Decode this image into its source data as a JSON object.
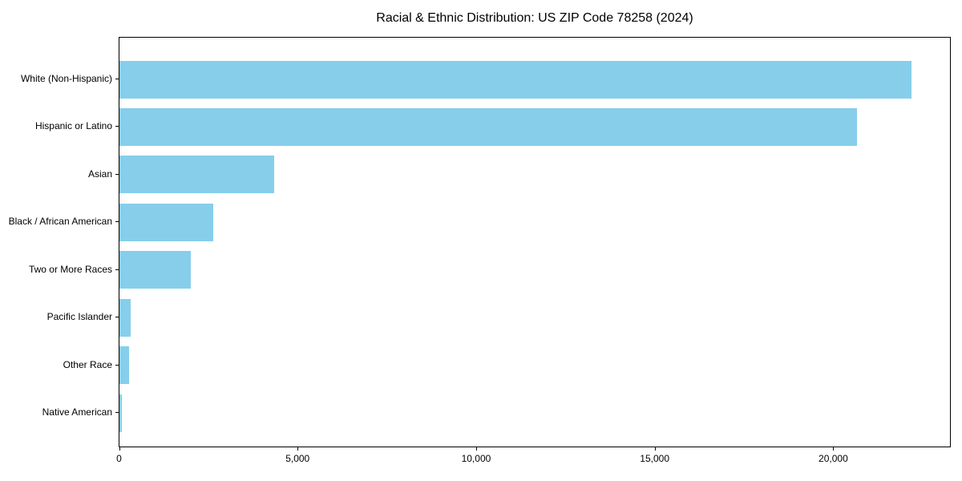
{
  "chart_data": {
    "type": "bar",
    "orientation": "horizontal",
    "title": "Racial & Ethnic Distribution: US ZIP Code 78258 (2024)",
    "categories": [
      "White (Non-Hispanic)",
      "Hispanic or Latino",
      "Asian",
      "Black / African American",
      "Two or More Races",
      "Pacific Islander",
      "Other Race",
      "Native American"
    ],
    "values": [
      22170,
      20650,
      4330,
      2630,
      2000,
      310,
      270,
      60
    ],
    "xlabel": "",
    "ylabel": "",
    "xlim": [
      0,
      23280
    ],
    "x_ticks": [
      0,
      5000,
      10000,
      15000,
      20000
    ],
    "x_tick_labels": [
      "0",
      "5,000",
      "10,000",
      "15,000",
      "20,000"
    ],
    "bar_color": "#87CEEB",
    "grid": false,
    "legend": null,
    "frame": "full-box"
  }
}
